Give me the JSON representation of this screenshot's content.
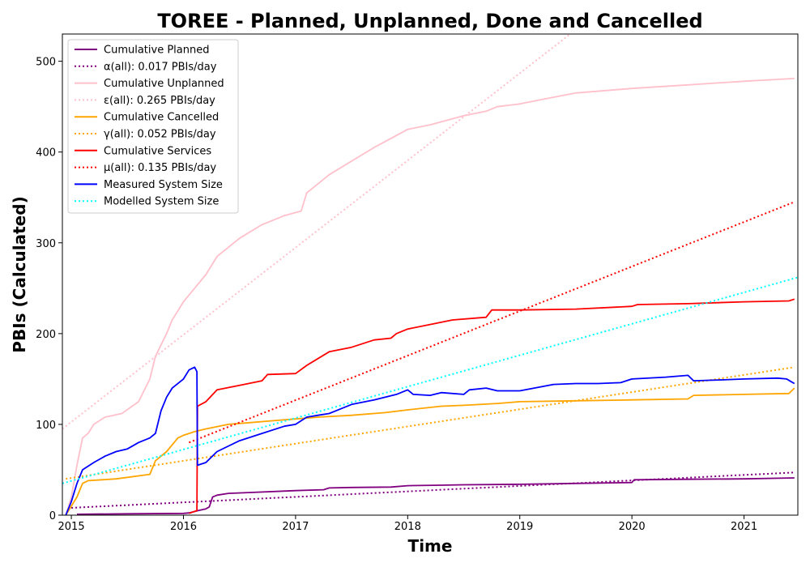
{
  "chart_data": {
    "type": "line",
    "title": "TOREE - Planned, Unplanned, Done  and Cancelled",
    "xlabel": "Time",
    "ylabel": "PBIs (Calculated)",
    "xlim": [
      2014.92,
      2021.48
    ],
    "ylim": [
      0,
      530
    ],
    "x_ticks": [
      2015,
      2016,
      2017,
      2018,
      2019,
      2020,
      2021
    ],
    "y_ticks": [
      0,
      100,
      200,
      300,
      400,
      500
    ],
    "grid": false,
    "legend_position": "top-left",
    "series": [
      {
        "name": "Cumulative Planned",
        "color": "#800080",
        "style": "solid",
        "x": [
          2015.05,
          2015.5,
          2016.0,
          2016.05,
          2016.13,
          2016.2,
          2016.23,
          2016.26,
          2016.3,
          2016.4,
          2016.6,
          2017.0,
          2017.25,
          2017.3,
          2017.5,
          2017.85,
          2018.0,
          2018.3,
          2018.5,
          2019.0,
          2019.5,
          2020.0,
          2020.02,
          2020.5,
          2021.0,
          2021.45
        ],
        "values": [
          1,
          1.5,
          2,
          2.5,
          5,
          7,
          9,
          20,
          22,
          24,
          25,
          27,
          28,
          30,
          30.5,
          31,
          32.5,
          33,
          33.5,
          34,
          35,
          36,
          39,
          39.5,
          40,
          41
        ]
      },
      {
        "name": "α(all): 0.017 PBIs/day",
        "color": "#800080",
        "style": "dotted",
        "x": [
          2015.0,
          2021.45
        ],
        "values": [
          8,
          47
        ]
      },
      {
        "name": "Cumulative Unplanned",
        "color": "#ffc0cb",
        "style": "solid",
        "x": [
          2014.95,
          2015.0,
          2015.05,
          2015.1,
          2015.15,
          2015.2,
          2015.3,
          2015.45,
          2015.6,
          2015.7,
          2015.75,
          2015.85,
          2015.9,
          2015.95,
          2016.0,
          2016.1,
          2016.2,
          2016.3,
          2016.5,
          2016.7,
          2016.9,
          2017.05,
          2017.1,
          2017.2,
          2017.3,
          2017.5,
          2017.7,
          2017.85,
          2018.0,
          2018.2,
          2018.5,
          2018.7,
          2018.8,
          2019.0,
          2019.2,
          2019.5,
          2020.0,
          2020.5,
          2021.0,
          2021.45
        ],
        "values": [
          0,
          20,
          55,
          85,
          90,
          100,
          108,
          112,
          125,
          150,
          175,
          200,
          215,
          225,
          235,
          250,
          265,
          285,
          305,
          320,
          330,
          335,
          355,
          365,
          375,
          390,
          405,
          415,
          425,
          430,
          440,
          445,
          450,
          453,
          458,
          465,
          470,
          474,
          478,
          481
        ]
      },
      {
        "name": "ε(all): 0.265 PBIs/day",
        "color": "#ffc0cb",
        "style": "dotted",
        "x": [
          2014.92,
          2019.45
        ],
        "values": [
          95,
          530
        ]
      },
      {
        "name": "Cumulative Cancelled",
        "color": "#ffa500",
        "style": "solid",
        "x": [
          2014.95,
          2015.05,
          2015.1,
          2015.15,
          2015.4,
          2015.7,
          2015.75,
          2015.85,
          2015.95,
          2016.0,
          2016.1,
          2016.2,
          2016.4,
          2016.6,
          2016.8,
          2017.0,
          2017.2,
          2017.5,
          2017.8,
          2018.0,
          2018.3,
          2018.5,
          2018.8,
          2019.0,
          2019.5,
          2020.0,
          2020.5,
          2020.55,
          2021.0,
          2021.4,
          2021.45
        ],
        "values": [
          0,
          20,
          35,
          38,
          40,
          45,
          60,
          70,
          85,
          88,
          92,
          95,
          100,
          102,
          104,
          106,
          108,
          110,
          113,
          116,
          120,
          121,
          123,
          125,
          126,
          127,
          128,
          132,
          133,
          134,
          140
        ]
      },
      {
        "name": "γ(all): 0.052 PBIs/day",
        "color": "#ffa500",
        "style": "dotted",
        "x": [
          2014.95,
          2021.45
        ],
        "values": [
          40,
          163
        ]
      },
      {
        "name": "Cumulative Services",
        "color": "#ff0000",
        "style": "solid",
        "x": [
          2016.05,
          2016.12,
          2016.125,
          2016.2,
          2016.3,
          2016.5,
          2016.7,
          2016.75,
          2017.0,
          2017.1,
          2017.3,
          2017.5,
          2017.7,
          2017.85,
          2017.9,
          2018.0,
          2018.2,
          2018.4,
          2018.7,
          2018.75,
          2019.0,
          2019.5,
          2020.0,
          2020.05,
          2020.5,
          2021.0,
          2021.4,
          2021.45
        ],
        "values": [
          2,
          5,
          120,
          125,
          138,
          143,
          148,
          155,
          156,
          165,
          180,
          185,
          193,
          195,
          200,
          205,
          210,
          215,
          218,
          226,
          226,
          227,
          230,
          232,
          233,
          235,
          236,
          238
        ]
      },
      {
        "name": "μ(all): 0.135 PBIs/day",
        "color": "#ff0000",
        "style": "dotted",
        "x": [
          2016.05,
          2021.45
        ],
        "values": [
          80,
          345
        ]
      },
      {
        "name": "Measured System Size",
        "color": "#0000ff",
        "style": "solid",
        "x": [
          2014.95,
          2015.0,
          2015.05,
          2015.1,
          2015.2,
          2015.3,
          2015.4,
          2015.5,
          2015.6,
          2015.7,
          2015.75,
          2015.8,
          2015.85,
          2015.9,
          2016.0,
          2016.05,
          2016.1,
          2016.12,
          2016.125,
          2016.2,
          2016.3,
          2016.5,
          2016.7,
          2016.9,
          2017.0,
          2017.1,
          2017.2,
          2017.3,
          2017.5,
          2017.7,
          2017.9,
          2018.0,
          2018.05,
          2018.2,
          2018.3,
          2018.5,
          2018.55,
          2018.7,
          2018.8,
          2019.0,
          2019.3,
          2019.5,
          2019.7,
          2019.9,
          2020.0,
          2020.3,
          2020.5,
          2020.55,
          2020.8,
          2021.0,
          2021.3,
          2021.38,
          2021.42,
          2021.45
        ],
        "values": [
          0,
          15,
          35,
          50,
          58,
          65,
          70,
          73,
          80,
          85,
          90,
          115,
          130,
          140,
          150,
          160,
          163,
          158,
          55,
          58,
          70,
          82,
          90,
          98,
          100,
          108,
          110,
          112,
          122,
          127,
          133,
          138,
          133,
          132,
          135,
          133,
          138,
          140,
          137,
          137,
          144,
          145,
          145,
          146,
          150,
          152,
          154,
          148,
          149,
          150,
          151,
          150,
          147,
          145
        ]
      },
      {
        "name": "Modelled System Size",
        "color": "#00ffff",
        "style": "dotted",
        "x": [
          2014.92,
          2021.48
        ],
        "values": [
          35,
          262
        ]
      }
    ]
  }
}
